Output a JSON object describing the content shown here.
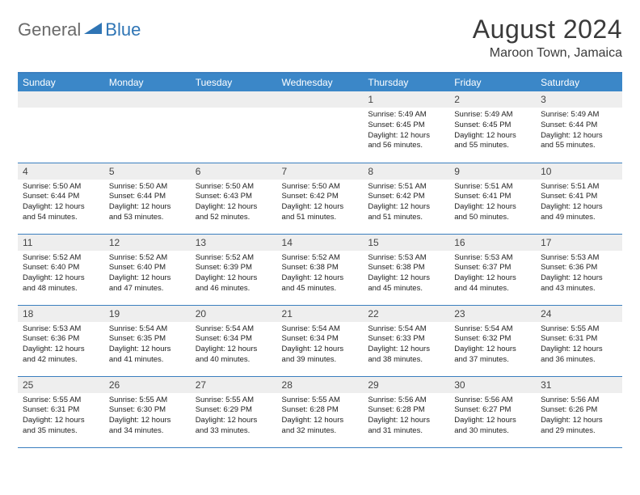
{
  "logo": {
    "text1": "General",
    "text2": "Blue"
  },
  "title": "August 2024",
  "location": "Maroon Town, Jamaica",
  "colors": {
    "header_bg": "#3b87c8",
    "border": "#3b7fbf",
    "daynum_bg": "#eeeeee",
    "logo_gray": "#6a6a6a",
    "logo_blue": "#2f75b5"
  },
  "day_names": [
    "Sunday",
    "Monday",
    "Tuesday",
    "Wednesday",
    "Thursday",
    "Friday",
    "Saturday"
  ],
  "weeks": [
    [
      {
        "n": "",
        "lines": []
      },
      {
        "n": "",
        "lines": []
      },
      {
        "n": "",
        "lines": []
      },
      {
        "n": "",
        "lines": []
      },
      {
        "n": "1",
        "lines": [
          "Sunrise: 5:49 AM",
          "Sunset: 6:45 PM",
          "Daylight: 12 hours and 56 minutes."
        ]
      },
      {
        "n": "2",
        "lines": [
          "Sunrise: 5:49 AM",
          "Sunset: 6:45 PM",
          "Daylight: 12 hours and 55 minutes."
        ]
      },
      {
        "n": "3",
        "lines": [
          "Sunrise: 5:49 AM",
          "Sunset: 6:44 PM",
          "Daylight: 12 hours and 55 minutes."
        ]
      }
    ],
    [
      {
        "n": "4",
        "lines": [
          "Sunrise: 5:50 AM",
          "Sunset: 6:44 PM",
          "Daylight: 12 hours and 54 minutes."
        ]
      },
      {
        "n": "5",
        "lines": [
          "Sunrise: 5:50 AM",
          "Sunset: 6:44 PM",
          "Daylight: 12 hours and 53 minutes."
        ]
      },
      {
        "n": "6",
        "lines": [
          "Sunrise: 5:50 AM",
          "Sunset: 6:43 PM",
          "Daylight: 12 hours and 52 minutes."
        ]
      },
      {
        "n": "7",
        "lines": [
          "Sunrise: 5:50 AM",
          "Sunset: 6:42 PM",
          "Daylight: 12 hours and 51 minutes."
        ]
      },
      {
        "n": "8",
        "lines": [
          "Sunrise: 5:51 AM",
          "Sunset: 6:42 PM",
          "Daylight: 12 hours and 51 minutes."
        ]
      },
      {
        "n": "9",
        "lines": [
          "Sunrise: 5:51 AM",
          "Sunset: 6:41 PM",
          "Daylight: 12 hours and 50 minutes."
        ]
      },
      {
        "n": "10",
        "lines": [
          "Sunrise: 5:51 AM",
          "Sunset: 6:41 PM",
          "Daylight: 12 hours and 49 minutes."
        ]
      }
    ],
    [
      {
        "n": "11",
        "lines": [
          "Sunrise: 5:52 AM",
          "Sunset: 6:40 PM",
          "Daylight: 12 hours and 48 minutes."
        ]
      },
      {
        "n": "12",
        "lines": [
          "Sunrise: 5:52 AM",
          "Sunset: 6:40 PM",
          "Daylight: 12 hours and 47 minutes."
        ]
      },
      {
        "n": "13",
        "lines": [
          "Sunrise: 5:52 AM",
          "Sunset: 6:39 PM",
          "Daylight: 12 hours and 46 minutes."
        ]
      },
      {
        "n": "14",
        "lines": [
          "Sunrise: 5:52 AM",
          "Sunset: 6:38 PM",
          "Daylight: 12 hours and 45 minutes."
        ]
      },
      {
        "n": "15",
        "lines": [
          "Sunrise: 5:53 AM",
          "Sunset: 6:38 PM",
          "Daylight: 12 hours and 45 minutes."
        ]
      },
      {
        "n": "16",
        "lines": [
          "Sunrise: 5:53 AM",
          "Sunset: 6:37 PM",
          "Daylight: 12 hours and 44 minutes."
        ]
      },
      {
        "n": "17",
        "lines": [
          "Sunrise: 5:53 AM",
          "Sunset: 6:36 PM",
          "Daylight: 12 hours and 43 minutes."
        ]
      }
    ],
    [
      {
        "n": "18",
        "lines": [
          "Sunrise: 5:53 AM",
          "Sunset: 6:36 PM",
          "Daylight: 12 hours and 42 minutes."
        ]
      },
      {
        "n": "19",
        "lines": [
          "Sunrise: 5:54 AM",
          "Sunset: 6:35 PM",
          "Daylight: 12 hours and 41 minutes."
        ]
      },
      {
        "n": "20",
        "lines": [
          "Sunrise: 5:54 AM",
          "Sunset: 6:34 PM",
          "Daylight: 12 hours and 40 minutes."
        ]
      },
      {
        "n": "21",
        "lines": [
          "Sunrise: 5:54 AM",
          "Sunset: 6:34 PM",
          "Daylight: 12 hours and 39 minutes."
        ]
      },
      {
        "n": "22",
        "lines": [
          "Sunrise: 5:54 AM",
          "Sunset: 6:33 PM",
          "Daylight: 12 hours and 38 minutes."
        ]
      },
      {
        "n": "23",
        "lines": [
          "Sunrise: 5:54 AM",
          "Sunset: 6:32 PM",
          "Daylight: 12 hours and 37 minutes."
        ]
      },
      {
        "n": "24",
        "lines": [
          "Sunrise: 5:55 AM",
          "Sunset: 6:31 PM",
          "Daylight: 12 hours and 36 minutes."
        ]
      }
    ],
    [
      {
        "n": "25",
        "lines": [
          "Sunrise: 5:55 AM",
          "Sunset: 6:31 PM",
          "Daylight: 12 hours and 35 minutes."
        ]
      },
      {
        "n": "26",
        "lines": [
          "Sunrise: 5:55 AM",
          "Sunset: 6:30 PM",
          "Daylight: 12 hours and 34 minutes."
        ]
      },
      {
        "n": "27",
        "lines": [
          "Sunrise: 5:55 AM",
          "Sunset: 6:29 PM",
          "Daylight: 12 hours and 33 minutes."
        ]
      },
      {
        "n": "28",
        "lines": [
          "Sunrise: 5:55 AM",
          "Sunset: 6:28 PM",
          "Daylight: 12 hours and 32 minutes."
        ]
      },
      {
        "n": "29",
        "lines": [
          "Sunrise: 5:56 AM",
          "Sunset: 6:28 PM",
          "Daylight: 12 hours and 31 minutes."
        ]
      },
      {
        "n": "30",
        "lines": [
          "Sunrise: 5:56 AM",
          "Sunset: 6:27 PM",
          "Daylight: 12 hours and 30 minutes."
        ]
      },
      {
        "n": "31",
        "lines": [
          "Sunrise: 5:56 AM",
          "Sunset: 6:26 PM",
          "Daylight: 12 hours and 29 minutes."
        ]
      }
    ]
  ]
}
